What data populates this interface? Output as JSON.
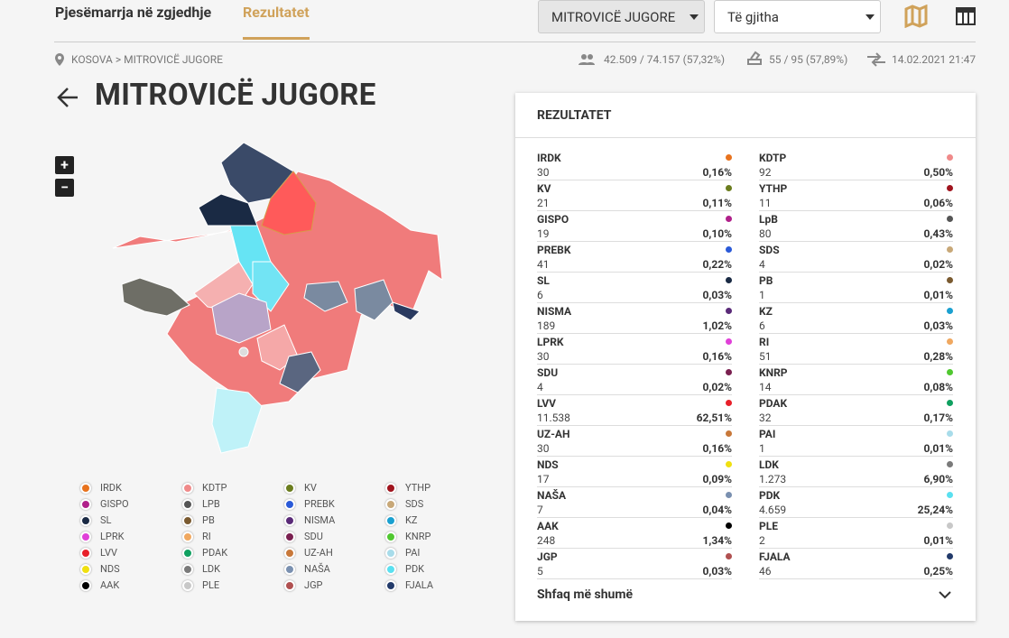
{
  "nav": {
    "tabs": [
      "Pjesëmarrja në zgjedhje",
      "Rezultatet"
    ],
    "selects": [
      "MITROVICË JUGORE",
      "Të gjitha"
    ]
  },
  "breadcrumb": {
    "items": [
      "KOSOVA",
      "MITROVICË JUGORE"
    ],
    "separator": ">"
  },
  "stats": {
    "turnout": "42.509 / 74.157 (57,32%)",
    "stations": "55 / 95 (57,89%)",
    "updated": "14.02.2021 21:47"
  },
  "title": "MITROVICË JUGORE",
  "zoom": [
    "+",
    "−"
  ],
  "results": {
    "title": "REZULTATET",
    "more": "Shfaq më shumë",
    "parties": [
      {
        "name": "IRDK",
        "votes": "30",
        "pct": "0,16%",
        "color": "#e8731e"
      },
      {
        "name": "KDTP",
        "votes": "92",
        "pct": "0,50%",
        "color": "#f08a8a"
      },
      {
        "name": "KV",
        "votes": "21",
        "pct": "0,11%",
        "color": "#6b7d1e"
      },
      {
        "name": "YTHP",
        "votes": "11",
        "pct": "0,06%",
        "color": "#a0141e"
      },
      {
        "name": "GISPO",
        "votes": "19",
        "pct": "0,10%",
        "color": "#b0208a"
      },
      {
        "name": "LpB",
        "votes": "80",
        "pct": "0,43%",
        "color": "#555555"
      },
      {
        "name": "PREBK",
        "votes": "41",
        "pct": "0,22%",
        "color": "#2a5ad8"
      },
      {
        "name": "SDS",
        "votes": "4",
        "pct": "0,02%",
        "color": "#c8a878"
      },
      {
        "name": "SL",
        "votes": "6",
        "pct": "0,03%",
        "color": "#1a2a44"
      },
      {
        "name": "PB",
        "votes": "1",
        "pct": "0,01%",
        "color": "#7a5a30"
      },
      {
        "name": "NISMA",
        "votes": "189",
        "pct": "1,02%",
        "color": "#5a2a78"
      },
      {
        "name": "KZ",
        "votes": "6",
        "pct": "0,03%",
        "color": "#1aa0d0"
      },
      {
        "name": "LPRK",
        "votes": "30",
        "pct": "0,16%",
        "color": "#e040d8"
      },
      {
        "name": "RI",
        "votes": "51",
        "pct": "0,28%",
        "color": "#f0a860"
      },
      {
        "name": "SDU",
        "votes": "4",
        "pct": "0,02%",
        "color": "#7a2050"
      },
      {
        "name": "KNRP",
        "votes": "14",
        "pct": "0,08%",
        "color": "#50c830"
      },
      {
        "name": "LVV",
        "votes": "11.538",
        "pct": "62,51%",
        "color": "#e8202a"
      },
      {
        "name": "PDAK",
        "votes": "32",
        "pct": "0,17%",
        "color": "#10a060"
      },
      {
        "name": "UZ-AH",
        "votes": "30",
        "pct": "0,16%",
        "color": "#c8783a"
      },
      {
        "name": "PAI",
        "votes": "1",
        "pct": "0,01%",
        "color": "#a8dcea"
      },
      {
        "name": "NDS",
        "votes": "17",
        "pct": "0,09%",
        "color": "#f0e010"
      },
      {
        "name": "LDK",
        "votes": "1.273",
        "pct": "6,90%",
        "color": "#7a7a7a"
      },
      {
        "name": "NAŠA",
        "votes": "7",
        "pct": "0,04%",
        "color": "#7a90b0"
      },
      {
        "name": "PDK",
        "votes": "4.659",
        "pct": "25,24%",
        "color": "#5ae0f0"
      },
      {
        "name": "AAK",
        "votes": "248",
        "pct": "1,34%",
        "color": "#000000"
      },
      {
        "name": "PLE",
        "votes": "2",
        "pct": "0,01%",
        "color": "#c8c8c8"
      },
      {
        "name": "JGP",
        "votes": "5",
        "pct": "0,03%",
        "color": "#b05050"
      },
      {
        "name": "FJALA",
        "votes": "46",
        "pct": "0,25%",
        "color": "#223a6a"
      }
    ]
  },
  "legend": [
    {
      "name": "IRDK",
      "color": "#e8731e"
    },
    {
      "name": "KDTP",
      "color": "#f08a8a"
    },
    {
      "name": "KV",
      "color": "#6b7d1e"
    },
    {
      "name": "YTHP",
      "color": "#a0141e"
    },
    {
      "name": "GISPO",
      "color": "#b0208a"
    },
    {
      "name": "LPB",
      "color": "#555555"
    },
    {
      "name": "PREBK",
      "color": "#2a5ad8"
    },
    {
      "name": "SDS",
      "color": "#c8a878"
    },
    {
      "name": "SL",
      "color": "#1a2a44"
    },
    {
      "name": "PB",
      "color": "#7a5a30"
    },
    {
      "name": "NISMA",
      "color": "#5a2a78"
    },
    {
      "name": "KZ",
      "color": "#1aa0d0"
    },
    {
      "name": "LPRK",
      "color": "#e040d8"
    },
    {
      "name": "RI",
      "color": "#f0a860"
    },
    {
      "name": "SDU",
      "color": "#7a2050"
    },
    {
      "name": "KNRP",
      "color": "#50c830"
    },
    {
      "name": "LVV",
      "color": "#e8202a"
    },
    {
      "name": "PDAK",
      "color": "#10a060"
    },
    {
      "name": "UZ-AH",
      "color": "#c8783a"
    },
    {
      "name": "PAI",
      "color": "#a8dcea"
    },
    {
      "name": "NDS",
      "color": "#f0e010"
    },
    {
      "name": "LDK",
      "color": "#7a7a7a"
    },
    {
      "name": "NAŠA",
      "color": "#7a90b0"
    },
    {
      "name": "PDK",
      "color": "#5ae0f0"
    },
    {
      "name": "AAK",
      "color": "#000000"
    },
    {
      "name": "PLE",
      "color": "#c8c8c8"
    },
    {
      "name": "JGP",
      "color": "#b05050"
    },
    {
      "name": "FJALA",
      "color": "#223a6a"
    }
  ]
}
